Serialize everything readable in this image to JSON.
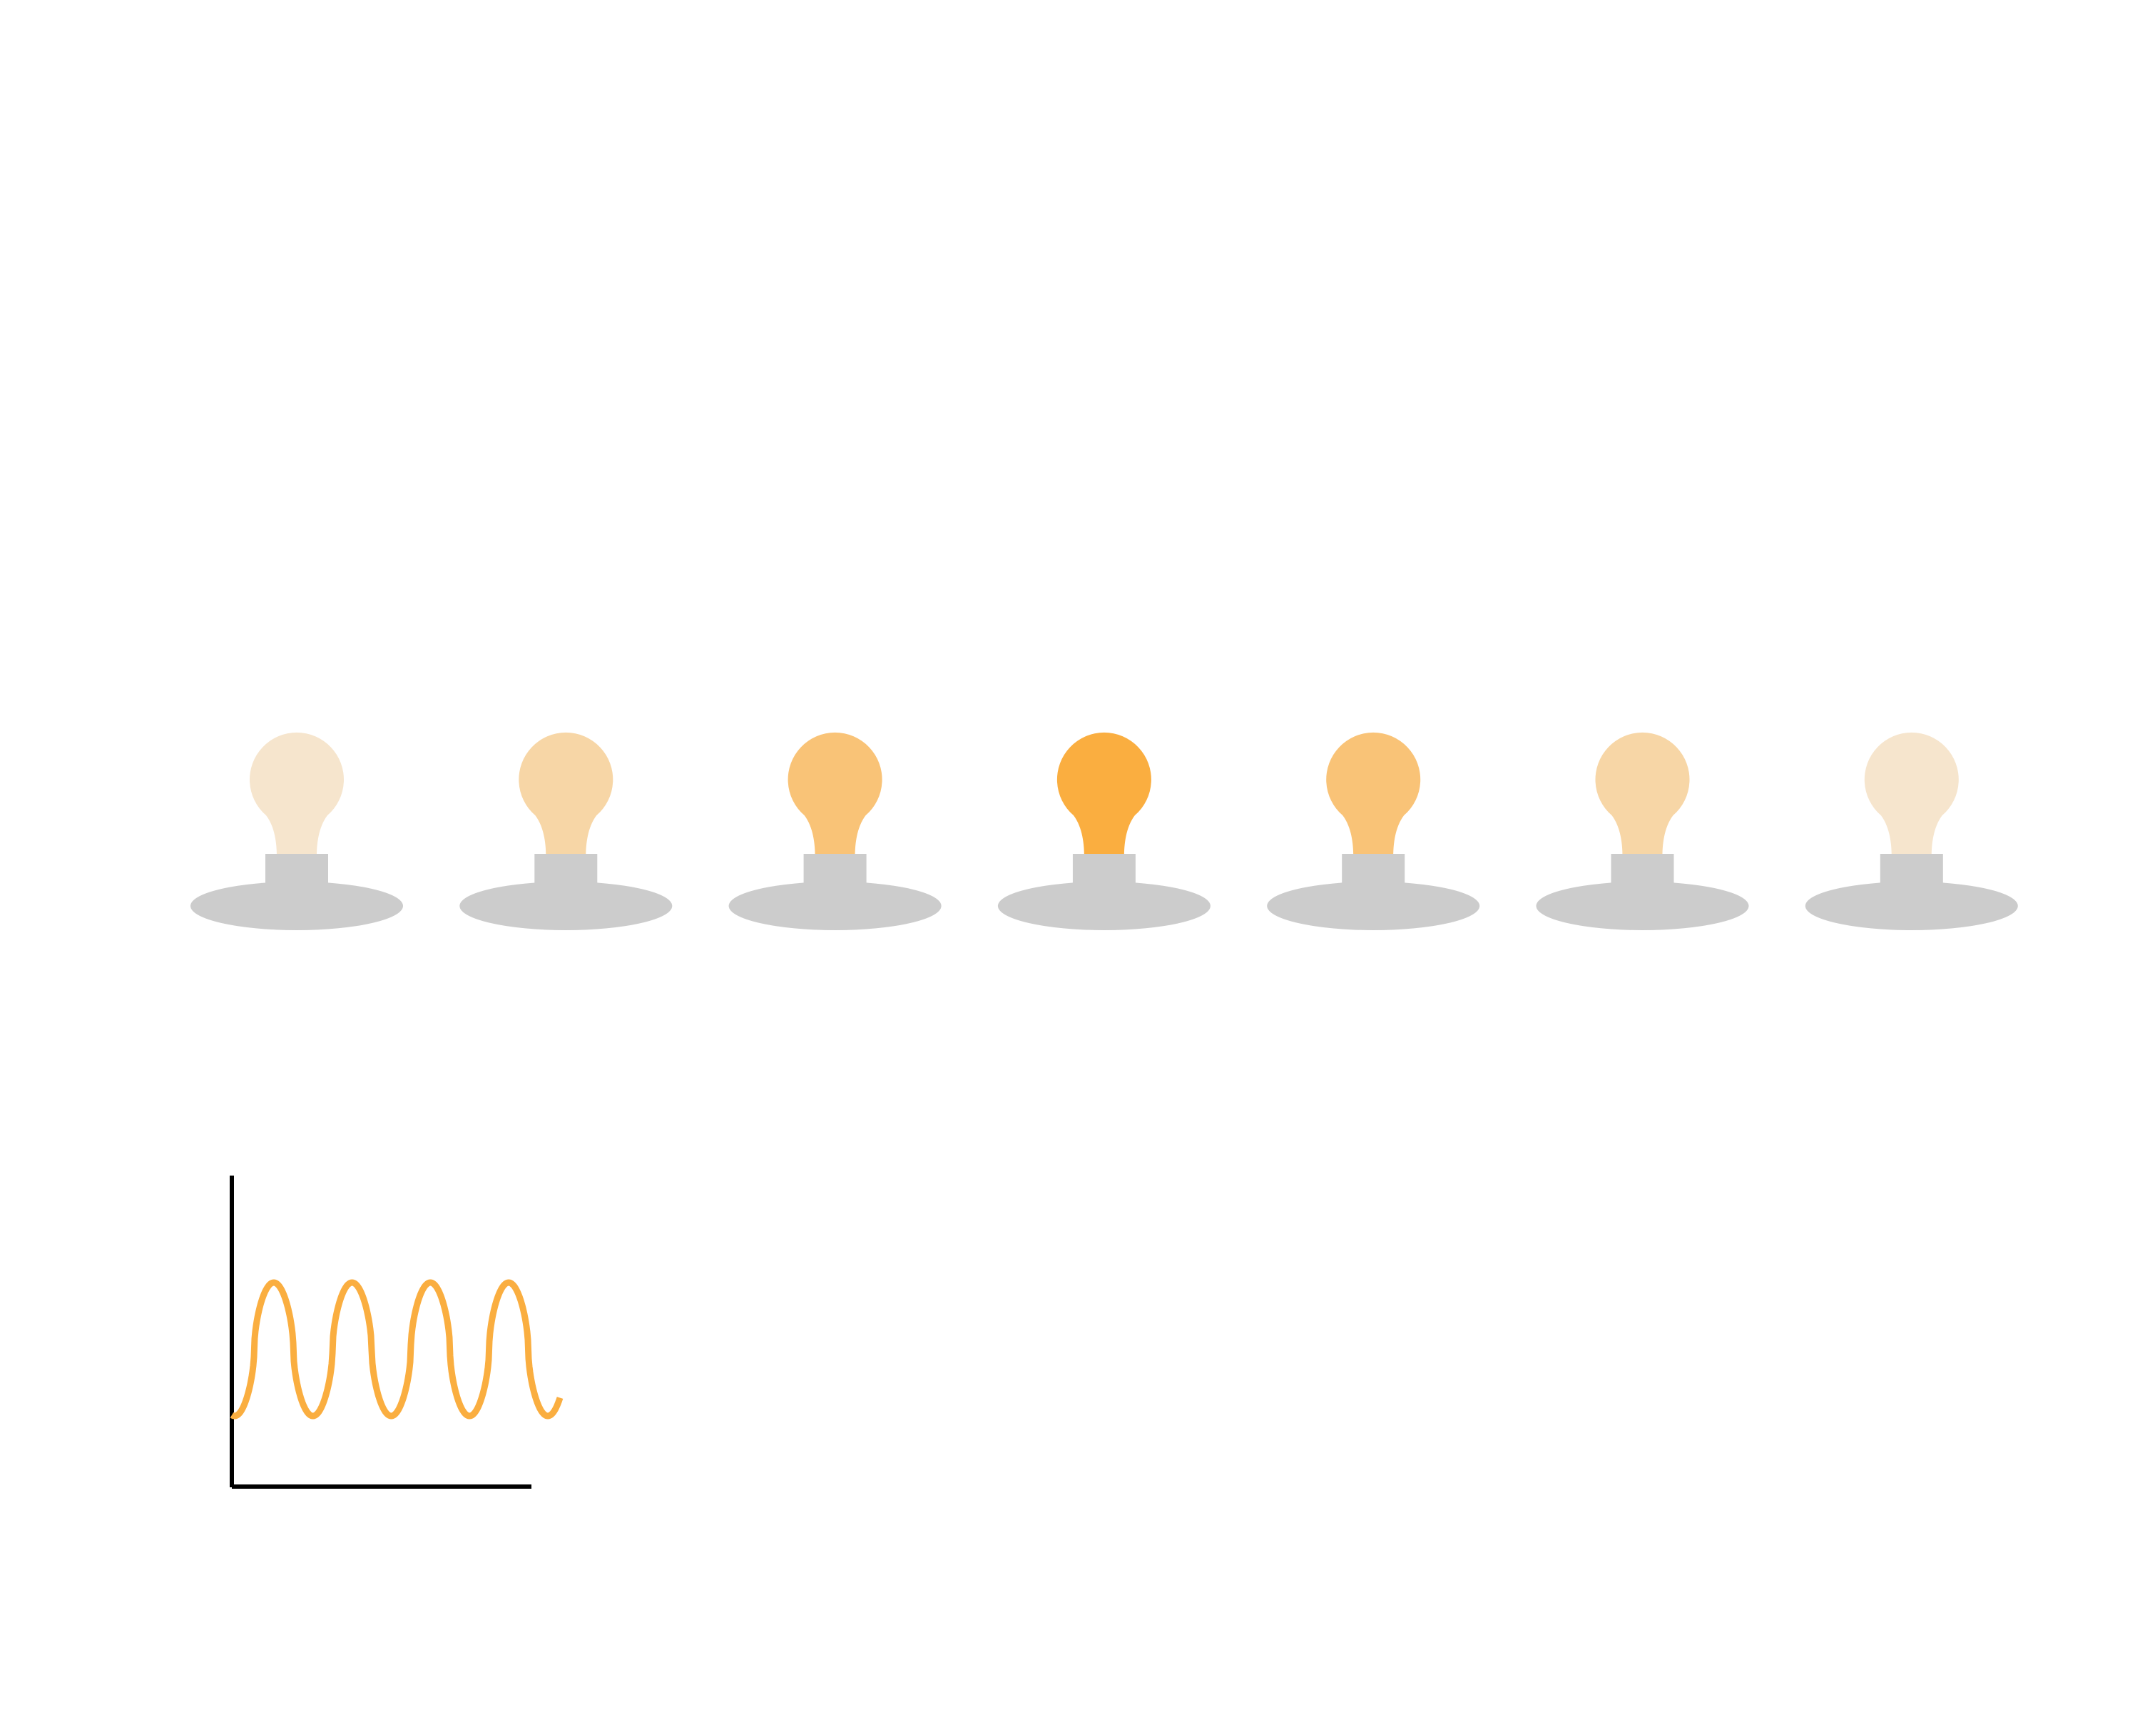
{
  "colors": {
    "background": "#ffffff",
    "fixture": "#cccccc",
    "axis": "#000000",
    "wave": "#faae40",
    "bulb_base": "#faae40",
    "bulb_unlit": "#f6ebdd"
  },
  "bulbs": [
    {
      "brightness": 0.1
    },
    {
      "brightness": 0.35
    },
    {
      "brightness": 0.65
    },
    {
      "brightness": 1.0
    },
    {
      "brightness": 0.65
    },
    {
      "brightness": 0.35
    },
    {
      "brightness": 0.1
    }
  ],
  "waveform": {
    "cycles": 4,
    "icon": "oscillating-wave"
  }
}
